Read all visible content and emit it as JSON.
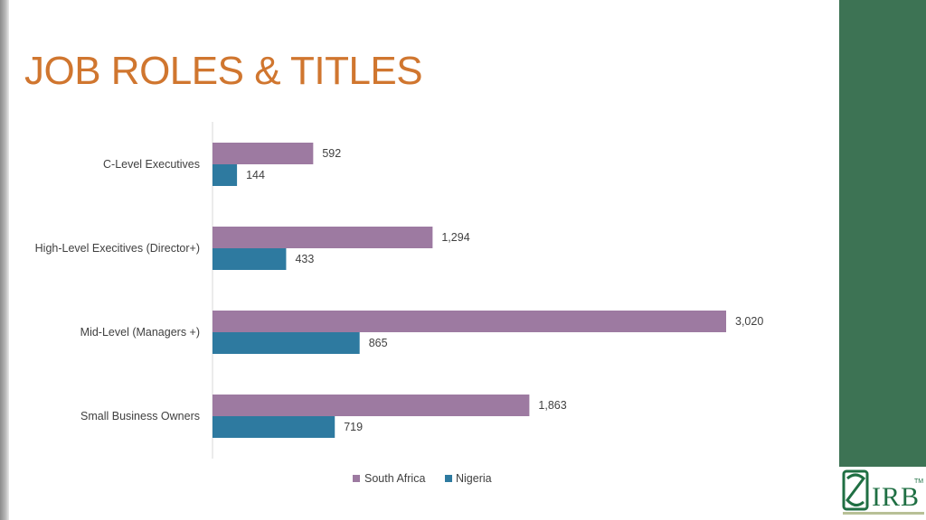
{
  "slide": {
    "title": "JOB ROLES & TITLES"
  },
  "logo": {
    "text": "IRB",
    "tm": "TM"
  },
  "colors": {
    "title": "#d0762f",
    "south_africa": "#9d7aa1",
    "nigeria": "#2e7aa0",
    "right_panel": "#3d7354"
  },
  "chart_data": {
    "type": "bar",
    "orientation": "horizontal",
    "categories": [
      "C-Level Executives",
      "High-Level Execitives (Director+)",
      "Mid-Level (Managers +)",
      "Small Business Owners"
    ],
    "series": [
      {
        "name": "South Africa",
        "values": [
          592,
          1294,
          3020,
          1863
        ],
        "labels": [
          "592",
          "1,294",
          "3,020",
          "1,863"
        ]
      },
      {
        "name": "Nigeria",
        "values": [
          144,
          433,
          865,
          719
        ],
        "labels": [
          "144",
          "433",
          "865",
          "719"
        ]
      }
    ],
    "xlim": [
      0,
      3300
    ],
    "grid": false,
    "legend": "bottom"
  }
}
